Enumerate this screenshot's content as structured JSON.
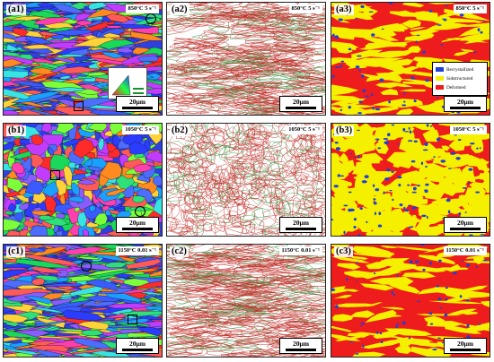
{
  "panels": {
    "a1": {
      "label": "(a1)",
      "condition": "850°C 5 s⁻¹",
      "scale": "20μm"
    },
    "a2": {
      "label": "(a2)",
      "condition": "850°C 5 s⁻¹",
      "scale": "20μm"
    },
    "a3": {
      "label": "(a3)",
      "condition": "850°C 5 s⁻¹",
      "scale": "20μm"
    },
    "b1": {
      "label": "(b1)",
      "condition": "1050°C 5 s⁻¹",
      "scale": "20μm"
    },
    "b2": {
      "label": "(b2)",
      "condition": "1050°C 5 s⁻¹",
      "scale": "20μm"
    },
    "b3": {
      "label": "(b3)",
      "condition": "1050°C 5 s⁻¹",
      "scale": "20μm"
    },
    "c1": {
      "label": "(c1)",
      "condition": "1150°C 0.01 s⁻¹",
      "scale": "20μm"
    },
    "c2": {
      "label": "(c2)",
      "condition": "1150°C 0.01 s⁻¹",
      "scale": "20μm"
    },
    "c3": {
      "label": "(c3)",
      "condition": "1150°C 0.01 s⁻¹",
      "scale": "20μm"
    }
  },
  "legend": {
    "items": [
      {
        "label": "Recrystallized",
        "color": "#1f3fd6"
      },
      {
        "label": "Substructured",
        "color": "#f5f000"
      },
      {
        "label": "Deformed",
        "color": "#ee1c1c"
      }
    ]
  },
  "colors": {
    "recrystallized": "#1f3fd6",
    "substructured": "#f5f000",
    "deformed": "#ee1c1c",
    "grain_boundary_high": "#c0302a",
    "grain_boundary_low": "#3aa04a"
  }
}
